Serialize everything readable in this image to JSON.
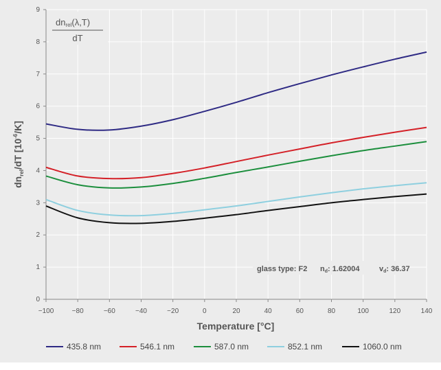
{
  "chart_data": {
    "type": "line",
    "formula": {
      "numerator_prefix": "dn",
      "numerator_sub": "rel",
      "numerator_suffix": "(λ,T)",
      "denominator": "dT"
    },
    "xlabel": "Temperature [°C]",
    "ylabel": {
      "prefix": "dn",
      "sub": "rel",
      "mid": "/dT [10",
      "sup": "-6",
      "suffix": "/K]"
    },
    "xlim": [
      -100,
      140
    ],
    "ylim": [
      0,
      9
    ],
    "x_ticks": [
      "−100",
      "−80",
      "−60",
      "−40",
      "−20",
      "0",
      "20",
      "40",
      "60",
      "80",
      "100",
      "120",
      "140"
    ],
    "y_ticks": [
      "0",
      "1",
      "2",
      "3",
      "4",
      "5",
      "6",
      "7",
      "8",
      "9"
    ],
    "grid": "vertical-and-horizontal",
    "legend_position": "bottom",
    "annotation": {
      "glass_label": "glass type: F2",
      "nd_prefix": "n",
      "nd_sub": "d",
      "nd_value": ": 1.62004",
      "vd_prefix": "v",
      "vd_sub": "d",
      "vd_value": ": 36.37"
    },
    "x": [
      -100,
      -80,
      -60,
      -40,
      -20,
      0,
      20,
      40,
      60,
      80,
      100,
      120,
      140
    ],
    "series": [
      {
        "name": "435.8 nm",
        "color": "#2e2a84",
        "values": [
          5.45,
          5.28,
          5.26,
          5.38,
          5.58,
          5.84,
          6.12,
          6.42,
          6.7,
          6.97,
          7.22,
          7.46,
          7.68
        ]
      },
      {
        "name": "546.1 nm",
        "color": "#d42027",
        "values": [
          4.1,
          3.83,
          3.75,
          3.78,
          3.91,
          4.08,
          4.28,
          4.48,
          4.67,
          4.86,
          5.03,
          5.19,
          5.34
        ]
      },
      {
        "name": "587.0 nm",
        "color": "#1b8e3c",
        "values": [
          3.83,
          3.56,
          3.46,
          3.49,
          3.6,
          3.76,
          3.94,
          4.11,
          4.29,
          4.46,
          4.62,
          4.76,
          4.9
        ]
      },
      {
        "name": "852.1 nm",
        "color": "#8ecfdf",
        "values": [
          3.1,
          2.76,
          2.62,
          2.6,
          2.67,
          2.78,
          2.9,
          3.04,
          3.18,
          3.31,
          3.43,
          3.53,
          3.62
        ]
      },
      {
        "name": "1060.0 nm",
        "color": "#111111",
        "values": [
          2.9,
          2.53,
          2.38,
          2.36,
          2.42,
          2.52,
          2.63,
          2.76,
          2.88,
          3.0,
          3.1,
          3.19,
          3.27
        ]
      }
    ]
  }
}
